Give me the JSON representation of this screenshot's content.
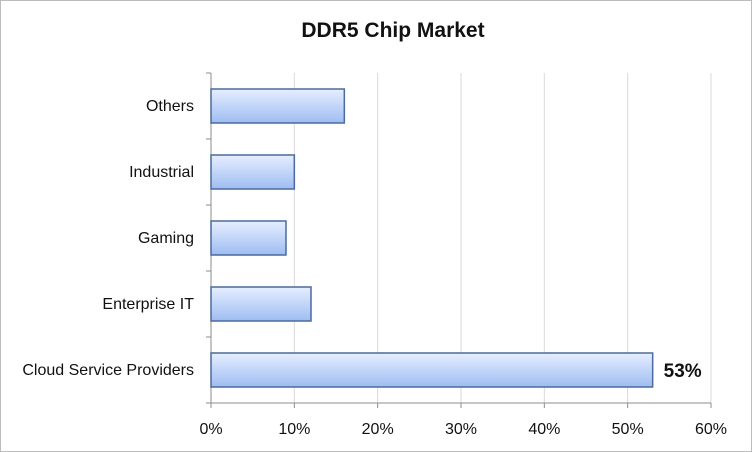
{
  "chart_data": {
    "type": "bar",
    "orientation": "horizontal",
    "title": "DDR5 Chip Market",
    "xlabel": "",
    "ylabel": "",
    "categories": [
      "Others",
      "Industrial",
      "Gaming",
      "Enterprise IT",
      "Cloud Service Providers"
    ],
    "values": [
      16,
      10,
      9,
      12,
      53
    ],
    "unit": "%",
    "xlim": [
      0,
      60
    ],
    "x_ticks": [
      "0%",
      "10%",
      "20%",
      "30%",
      "40%",
      "50%",
      "60%"
    ],
    "data_labels": [
      {
        "category": "Cloud Service Providers",
        "text": "53%"
      }
    ],
    "grid": true,
    "legend": "none",
    "colors": {
      "bar_fill_light": "#e6eeff",
      "bar_fill_dark": "#9ebdf2",
      "bar_stroke": "#4c6a9c",
      "gridline": "#d9d9d9",
      "axis": "#8c8c8c"
    }
  }
}
